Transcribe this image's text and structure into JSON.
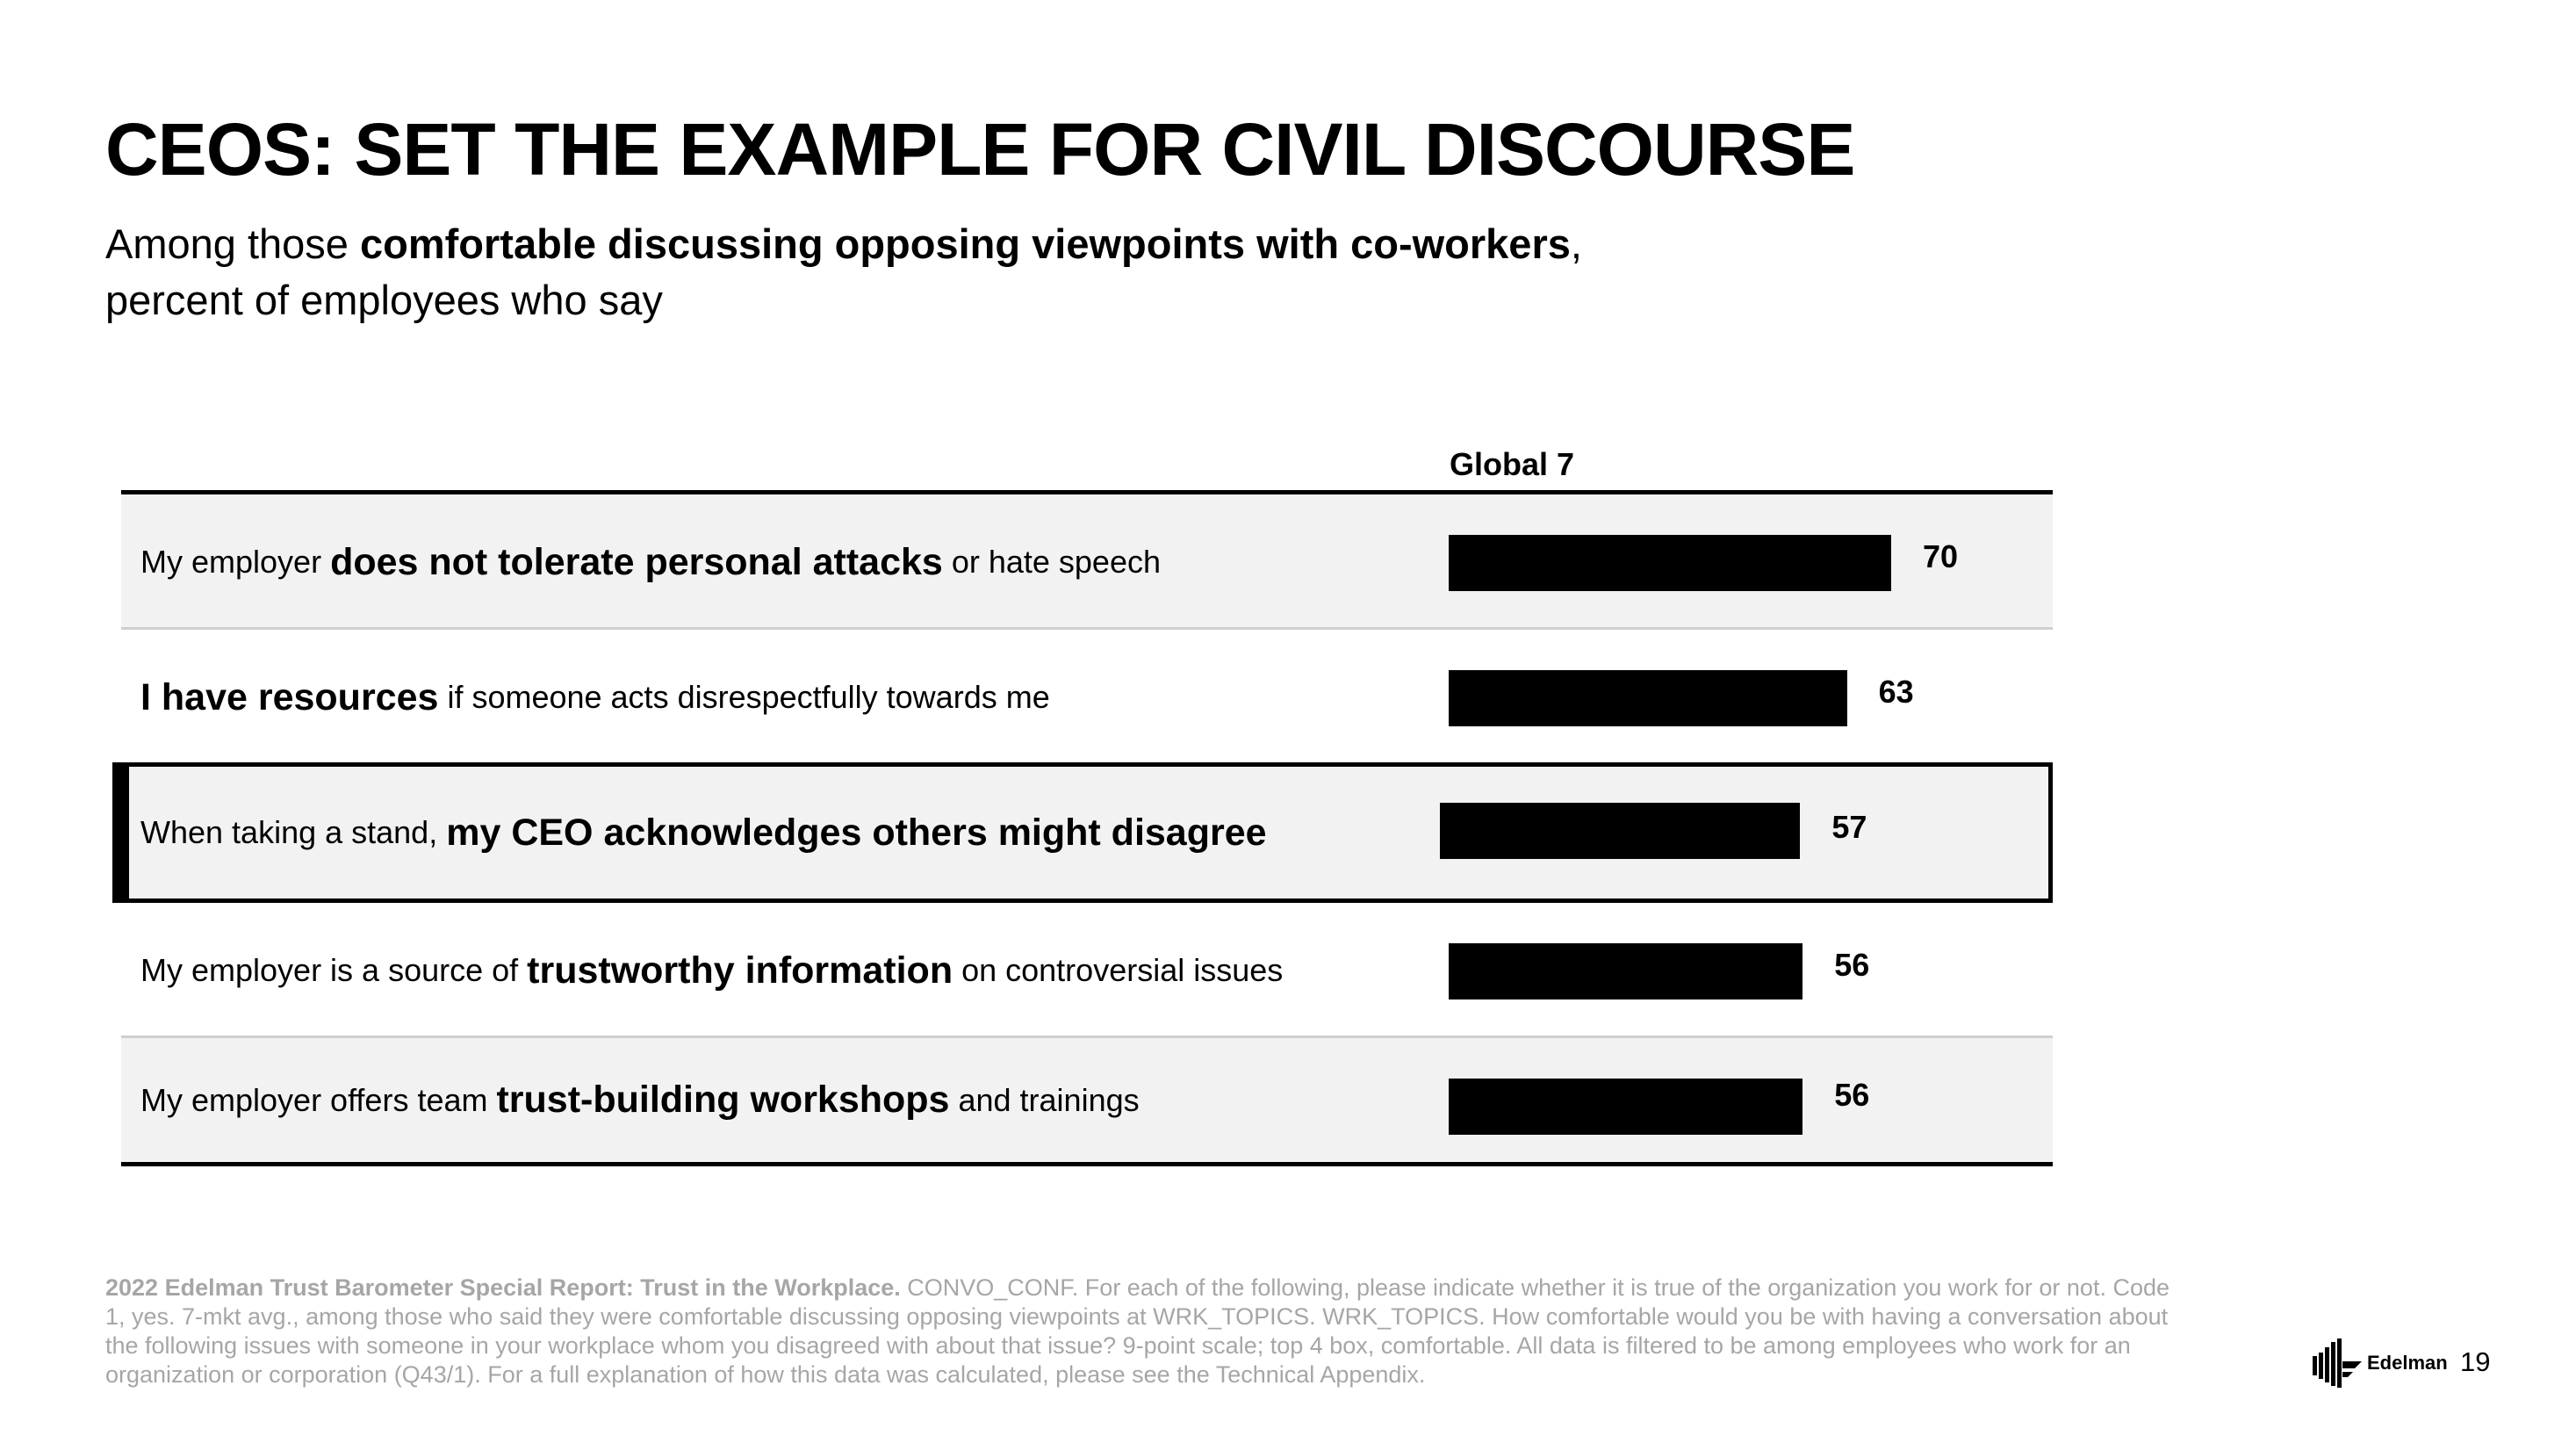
{
  "slide": {
    "title": "CEOS: SET THE EXAMPLE FOR CIVIL DISCOURSE",
    "subtitle": {
      "pre": "Among those ",
      "bold": "comfortable discussing opposing viewpoints with co-workers",
      "post": ",",
      "line2": "percent of employees who say"
    },
    "column_header": "Global 7",
    "footnote": {
      "bold": "2022 Edelman Trust Barometer Special Report: Trust in the Workplace.",
      "text": " CONVO_CONF. For each of the following, please indicate whether it is true of the organization you work for or not. Code 1, yes. 7-mkt avg., among those who said they were comfortable discussing opposing viewpoints at WRK_TOPICS. WRK_TOPICS. How comfortable would you be with having a conversation about the following issues with someone in your workplace whom you disagreed with about that issue? 9-point scale; top 4 box, comfortable. All data is filtered to be among employees who work for an organization or corporation (Q43/1). For a full explanation of how this data was calculated, please see the Technical Appendix."
    },
    "logo_text": "Edelman",
    "page_number": "19"
  },
  "chart_data": {
    "type": "bar",
    "orientation": "horizontal",
    "categories": [
      "My employer does not tolerate personal attacks or hate speech",
      "I have resources if someone acts disrespectfully towards me",
      "When taking a stand, my CEO acknowledges others might disagree",
      "My employer is a source of trustworthy information on controversial issues",
      "My employer offers team trust-building workshops and trainings"
    ],
    "category_parts": [
      {
        "pre": "My employer ",
        "bold": "does not tolerate personal attacks",
        "post": " or hate speech"
      },
      {
        "pre": "",
        "bold": "I have resources",
        "post": " if someone acts disrespectfully towards me"
      },
      {
        "pre": "When taking a stand, ",
        "bold": "my CEO acknowledges others might disagree",
        "post": ""
      },
      {
        "pre": "My employer is a source of ",
        "bold": "trustworthy information",
        "post": " on controversial issues"
      },
      {
        "pre": "My employer offers team ",
        "bold": "trust-building workshops",
        "post": " and trainings"
      }
    ],
    "values": [
      70,
      63,
      57,
      56,
      56
    ],
    "xlim": [
      0,
      100
    ],
    "highlighted_index": 2,
    "bar_color": "#000000",
    "shaded_rows": [
      0,
      2,
      4
    ],
    "row_fill": "#f2f2f2"
  }
}
